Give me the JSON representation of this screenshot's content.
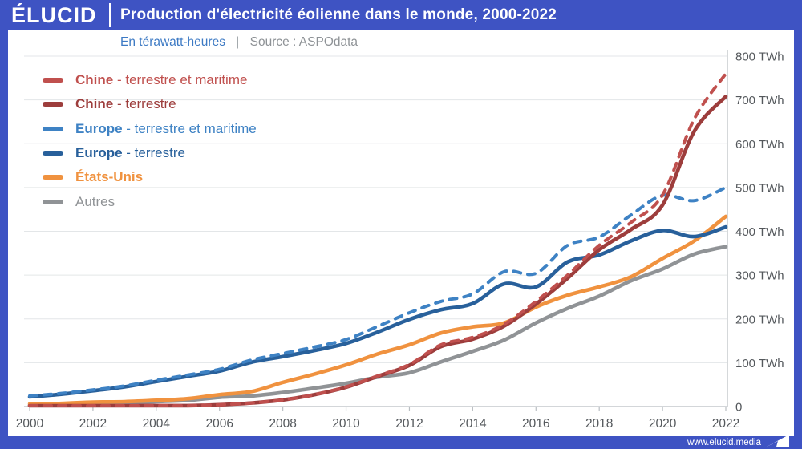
{
  "header": {
    "logo": "ÉLUCID",
    "title": "Production d'électricité éolienne dans le monde, 2000-2022"
  },
  "subheader": {
    "unit_label": "En térawatt-heures",
    "separator": "|",
    "source_label": "Source : ASPOdata"
  },
  "footer": {
    "site": "www.elucid.media"
  },
  "colors": {
    "frame_blue": "#3e53c3",
    "unit_text_blue": "#3d7ac4",
    "axis_text": "#54585c",
    "grid_line": "#e3e6e8",
    "axis_line": "#b9bec2"
  },
  "chart_data": {
    "type": "line",
    "title": "Production d'électricité éolienne dans le monde, 2000-2022",
    "unit": "TWh",
    "x": [
      2000,
      2001,
      2002,
      2003,
      2004,
      2005,
      2006,
      2007,
      2008,
      2009,
      2010,
      2011,
      2012,
      2013,
      2014,
      2015,
      2016,
      2017,
      2018,
      2019,
      2020,
      2021,
      2022
    ],
    "x_ticks": [
      2000,
      2002,
      2004,
      2006,
      2008,
      2010,
      2012,
      2014,
      2016,
      2018,
      2020,
      2022
    ],
    "ylim": [
      0,
      800
    ],
    "y_tick_interval": 100,
    "y_tick_suffix": " TWh",
    "grid": true,
    "legend_position": "top-left",
    "series": [
      {
        "name": "Chine",
        "descriptor": " - terrestre et maritime",
        "label": "Chine - terrestre et maritime",
        "style": "dashed",
        "color": "#c0504e",
        "bold_name": true,
        "values": [
          1,
          1,
          1,
          1,
          2,
          2,
          4,
          8,
          15,
          27,
          45,
          70,
          96,
          141,
          158,
          188,
          240,
          300,
          368,
          420,
          483,
          656,
          760
        ]
      },
      {
        "name": "Chine",
        "descriptor": " - terrestre",
        "label": "Chine - terrestre",
        "style": "solid",
        "color": "#9d3d3c",
        "bold_name": true,
        "values": [
          1,
          1,
          1,
          1,
          2,
          2,
          4,
          8,
          15,
          27,
          44,
          69,
          94,
          137,
          154,
          184,
          234,
          293,
          358,
          404,
          460,
          628,
          708
        ]
      },
      {
        "name": "Europe",
        "descriptor": " - terrestre et maritime",
        "label": "Europe - terrestre et maritime",
        "style": "dashed",
        "color": "#3e82c4",
        "bold_name": true,
        "values": [
          24,
          30,
          38,
          47,
          60,
          72,
          85,
          106,
          121,
          136,
          153,
          183,
          214,
          240,
          257,
          308,
          304,
          368,
          387,
          437,
          482,
          470,
          500
        ]
      },
      {
        "name": "Europe",
        "descriptor": " - terrestre",
        "label": "Europe - terrestre",
        "style": "solid",
        "color": "#28609b",
        "bold_name": true,
        "values": [
          22,
          28,
          36,
          45,
          57,
          69,
          81,
          101,
          114,
          128,
          144,
          170,
          199,
          221,
          235,
          280,
          273,
          330,
          346,
          378,
          402,
          388,
          410
        ]
      },
      {
        "name": "États-Unis",
        "descriptor": "",
        "label": "États-Unis",
        "style": "solid",
        "color": "#f0923f",
        "bold_name": true,
        "values": [
          6,
          7,
          10,
          11,
          14,
          18,
          27,
          34,
          55,
          74,
          95,
          120,
          141,
          168,
          182,
          191,
          227,
          254,
          273,
          296,
          338,
          378,
          434
        ]
      },
      {
        "name": "Autres",
        "descriptor": "",
        "label": "Autres",
        "style": "solid",
        "color": "#909396",
        "bold_name": false,
        "values": [
          3,
          4,
          5,
          6,
          11,
          14,
          21,
          24,
          32,
          42,
          53,
          67,
          77,
          102,
          126,
          152,
          191,
          224,
          252,
          287,
          314,
          348,
          365
        ]
      }
    ]
  }
}
